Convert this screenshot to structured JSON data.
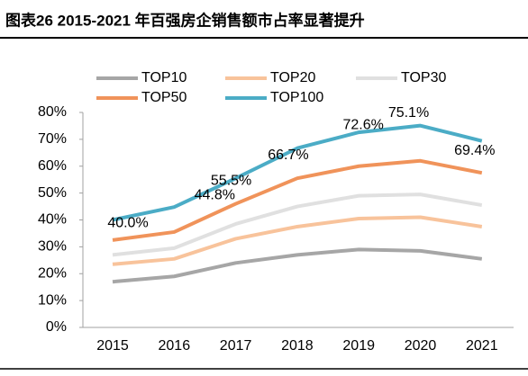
{
  "chart_data": {
    "type": "line",
    "title": "图表26   2015-2021 年百强房企销售额市占率显著提升",
    "categories": [
      "2015",
      "2016",
      "2017",
      "2018",
      "2019",
      "2020",
      "2021"
    ],
    "ylim": [
      0,
      80
    ],
    "yticks": [
      {
        "value": 0,
        "label": "0%"
      },
      {
        "value": 10,
        "label": "10%"
      },
      {
        "value": 20,
        "label": "20%"
      },
      {
        "value": 30,
        "label": "30%"
      },
      {
        "value": 40,
        "label": "40%"
      },
      {
        "value": 50,
        "label": "50%"
      },
      {
        "value": 60,
        "label": "60%"
      },
      {
        "value": 70,
        "label": "70%"
      },
      {
        "value": 80,
        "label": "80%"
      }
    ],
    "grid": false,
    "series": [
      {
        "name": "TOP10",
        "color": "#a6a6a6",
        "values": [
          17,
          19,
          24,
          27,
          29,
          28.5,
          25.5
        ]
      },
      {
        "name": "TOP20",
        "color": "#f8c39b",
        "values": [
          23.5,
          25.5,
          33,
          37.5,
          40.5,
          41,
          37.5
        ]
      },
      {
        "name": "TOP30",
        "color": "#e0e0e0",
        "values": [
          27,
          29.5,
          38.5,
          45,
          49,
          49.5,
          45.5
        ]
      },
      {
        "name": "TOP50",
        "color": "#f0935a",
        "values": [
          32.5,
          35.5,
          46,
          55.5,
          60,
          62,
          57.5
        ]
      },
      {
        "name": "TOP100",
        "color": "#4bacc6",
        "values": [
          40,
          44.8,
          55.5,
          66.7,
          72.6,
          75.1,
          69.4
        ],
        "value_labels": [
          "40.0%",
          "44.8%",
          "55.5%",
          "66.7%",
          "72.6%",
          "75.1%",
          "69.4%"
        ]
      }
    ]
  }
}
